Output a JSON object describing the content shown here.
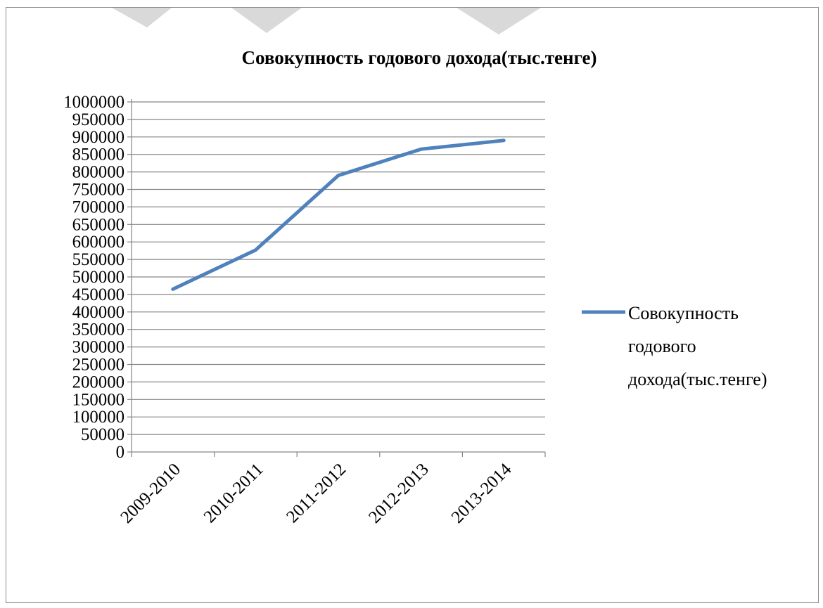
{
  "chart_data": {
    "type": "line",
    "title": "Совокупность годового дохода(тыс.тенге)",
    "categories": [
      "2009-2010",
      "2010-2011",
      "2011-2012",
      "2012-2013",
      "2013-2014"
    ],
    "series": [
      {
        "name": "Совокупность годового дохода(тыс.тенге)",
        "values": [
          465000,
          577000,
          790000,
          865000,
          890000
        ],
        "color": "#4F81BD"
      }
    ],
    "ylim": [
      0,
      1000000
    ],
    "ystep": 50000,
    "yticks": [
      "0",
      "50000",
      "100000",
      "150000",
      "200000",
      "250000",
      "300000",
      "350000",
      "400000",
      "450000",
      "500000",
      "550000",
      "600000",
      "650000",
      "700000",
      "750000",
      "800000",
      "850000",
      "900000",
      "950000",
      "1000000"
    ],
    "grid": true,
    "legend_position": "right",
    "legend_lines": [
      "Совокупность",
      "годового",
      "дохода(тыс.тенге)"
    ],
    "xlabel": "",
    "ylabel": ""
  },
  "colors": {
    "grid": "#868686",
    "axis": "#868686",
    "frame": "#8c8c8c",
    "series": "#4F81BD",
    "background_shapes": "#d9d9d9"
  }
}
